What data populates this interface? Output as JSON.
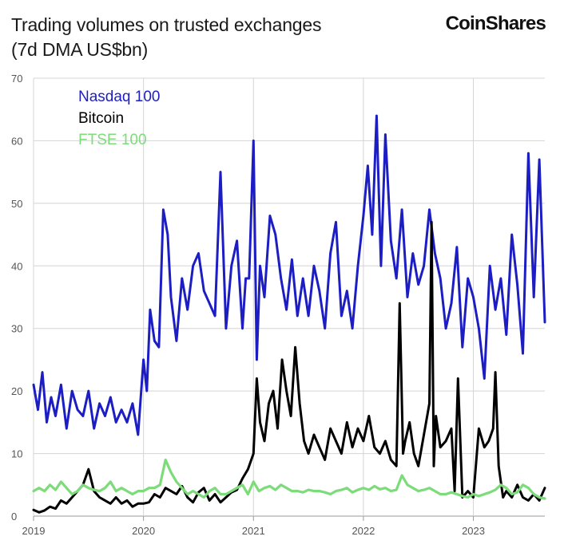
{
  "header": {
    "title_line1": "Trading volumes on trusted exchanges",
    "title_line2": "(7d DMA US$bn)",
    "brand": "CoinShares"
  },
  "colors": {
    "nasdaq": "#1c1ec4",
    "bitcoin": "#000000",
    "ftse": "#7ddc7a",
    "grid": "#d4d4d4",
    "axis_text": "#555555"
  },
  "chart_data": {
    "type": "line",
    "title": "Trading volumes on trusted exchanges (7d DMA US$bn)",
    "ylim": [
      0,
      70
    ],
    "yticks": [
      0,
      10,
      20,
      30,
      40,
      50,
      60,
      70
    ],
    "xlim": [
      2019.0,
      2023.65
    ],
    "xticks": [
      "2019",
      "2020",
      "2021",
      "2022",
      "2023"
    ],
    "grid": true,
    "legend_placement": "top-left",
    "series": [
      {
        "name": "Nasdaq 100",
        "x": [
          2019.0,
          2019.04,
          2019.08,
          2019.12,
          2019.16,
          2019.2,
          2019.25,
          2019.3,
          2019.35,
          2019.4,
          2019.45,
          2019.5,
          2019.55,
          2019.6,
          2019.65,
          2019.7,
          2019.75,
          2019.8,
          2019.85,
          2019.9,
          2019.95,
          2020.0,
          2020.03,
          2020.06,
          2020.1,
          2020.14,
          2020.18,
          2020.22,
          2020.25,
          2020.3,
          2020.35,
          2020.4,
          2020.45,
          2020.5,
          2020.55,
          2020.6,
          2020.65,
          2020.7,
          2020.75,
          2020.8,
          2020.85,
          2020.9,
          2020.93,
          2020.96,
          2021.0,
          2021.03,
          2021.06,
          2021.1,
          2021.15,
          2021.2,
          2021.25,
          2021.3,
          2021.35,
          2021.4,
          2021.45,
          2021.5,
          2021.55,
          2021.6,
          2021.65,
          2021.7,
          2021.75,
          2021.8,
          2021.85,
          2021.9,
          2021.95,
          2022.0,
          2022.04,
          2022.08,
          2022.12,
          2022.16,
          2022.2,
          2022.25,
          2022.3,
          2022.35,
          2022.4,
          2022.45,
          2022.5,
          2022.55,
          2022.6,
          2022.65,
          2022.7,
          2022.75,
          2022.8,
          2022.85,
          2022.9,
          2022.95,
          2023.0,
          2023.05,
          2023.1,
          2023.15,
          2023.2,
          2023.25,
          2023.3,
          2023.35,
          2023.4,
          2023.45,
          2023.5,
          2023.55,
          2023.6,
          2023.65
        ],
        "values": [
          21,
          17,
          23,
          15,
          19,
          16,
          21,
          14,
          20,
          17,
          16,
          20,
          14,
          18,
          16,
          19,
          15,
          17,
          15,
          18,
          13,
          25,
          20,
          33,
          28,
          27,
          49,
          45,
          35,
          28,
          38,
          33,
          40,
          42,
          36,
          34,
          32,
          55,
          30,
          40,
          44,
          30,
          38,
          38,
          60,
          25,
          40,
          35,
          48,
          45,
          38,
          33,
          41,
          32,
          38,
          32,
          40,
          36,
          30,
          42,
          47,
          32,
          36,
          30,
          40,
          48,
          56,
          45,
          64,
          40,
          61,
          44,
          38,
          49,
          35,
          42,
          37,
          40,
          49,
          42,
          38,
          30,
          34,
          43,
          27,
          38,
          35,
          30,
          22,
          40,
          33,
          38,
          29,
          45,
          37,
          26,
          58,
          35,
          57,
          31
        ]
      },
      {
        "name": "Bitcoin",
        "x": [
          2019.0,
          2019.05,
          2019.1,
          2019.15,
          2019.2,
          2019.25,
          2019.3,
          2019.35,
          2019.4,
          2019.45,
          2019.5,
          2019.55,
          2019.6,
          2019.65,
          2019.7,
          2019.75,
          2019.8,
          2019.85,
          2019.9,
          2019.95,
          2020.0,
          2020.05,
          2020.1,
          2020.15,
          2020.2,
          2020.25,
          2020.3,
          2020.35,
          2020.4,
          2020.45,
          2020.5,
          2020.55,
          2020.6,
          2020.65,
          2020.7,
          2020.75,
          2020.8,
          2020.85,
          2020.9,
          2020.95,
          2021.0,
          2021.03,
          2021.06,
          2021.1,
          2021.14,
          2021.18,
          2021.22,
          2021.26,
          2021.3,
          2021.34,
          2021.38,
          2021.42,
          2021.46,
          2021.5,
          2021.55,
          2021.6,
          2021.65,
          2021.7,
          2021.75,
          2021.8,
          2021.85,
          2021.9,
          2021.95,
          2022.0,
          2022.05,
          2022.1,
          2022.15,
          2022.2,
          2022.25,
          2022.3,
          2022.33,
          2022.36,
          2022.38,
          2022.42,
          2022.46,
          2022.5,
          2022.55,
          2022.6,
          2022.62,
          2022.64,
          2022.66,
          2022.7,
          2022.75,
          2022.8,
          2022.83,
          2022.86,
          2022.9,
          2022.95,
          2023.0,
          2023.05,
          2023.1,
          2023.14,
          2023.18,
          2023.2,
          2023.23,
          2023.27,
          2023.3,
          2023.35,
          2023.4,
          2023.45,
          2023.5,
          2023.55,
          2023.6,
          2023.65
        ],
        "values": [
          1,
          0.6,
          0.9,
          1.5,
          1.2,
          2.5,
          2,
          3,
          4,
          5,
          7.5,
          4,
          3,
          2.5,
          2,
          3,
          2,
          2.5,
          1.5,
          2,
          2,
          2.2,
          3.5,
          3,
          4.5,
          4,
          3.5,
          4.8,
          3,
          2.2,
          3.8,
          4.5,
          2.5,
          3.5,
          2.2,
          3,
          3.8,
          4.2,
          6,
          7.5,
          10,
          22,
          15,
          12,
          18,
          20,
          14,
          25,
          20,
          16,
          27,
          18,
          12,
          10,
          13,
          11,
          9,
          14,
          12,
          10,
          15,
          11,
          14,
          12,
          16,
          11,
          10,
          12,
          9,
          8,
          34,
          10,
          12,
          15,
          10,
          8,
          13,
          18,
          47,
          8,
          16,
          11,
          12,
          14,
          4,
          22,
          3,
          4,
          3,
          14,
          11,
          12,
          14,
          23,
          8,
          3,
          4,
          3,
          5,
          3,
          2.5,
          3.5,
          2.5,
          4.5
        ]
      },
      {
        "name": "FTSE 100",
        "x": [
          2019.0,
          2019.05,
          2019.1,
          2019.15,
          2019.2,
          2019.25,
          2019.3,
          2019.35,
          2019.4,
          2019.45,
          2019.5,
          2019.55,
          2019.6,
          2019.65,
          2019.7,
          2019.75,
          2019.8,
          2019.85,
          2019.9,
          2019.95,
          2020.0,
          2020.05,
          2020.1,
          2020.15,
          2020.2,
          2020.25,
          2020.3,
          2020.35,
          2020.4,
          2020.45,
          2020.5,
          2020.55,
          2020.6,
          2020.65,
          2020.7,
          2020.75,
          2020.8,
          2020.85,
          2020.9,
          2020.95,
          2021.0,
          2021.05,
          2021.1,
          2021.15,
          2021.2,
          2021.25,
          2021.3,
          2021.35,
          2021.4,
          2021.45,
          2021.5,
          2021.55,
          2021.6,
          2021.65,
          2021.7,
          2021.75,
          2021.8,
          2021.85,
          2021.9,
          2021.95,
          2022.0,
          2022.05,
          2022.1,
          2022.15,
          2022.2,
          2022.25,
          2022.3,
          2022.35,
          2022.4,
          2022.45,
          2022.5,
          2022.55,
          2022.6,
          2022.65,
          2022.7,
          2022.75,
          2022.8,
          2022.85,
          2022.9,
          2022.95,
          2023.0,
          2023.05,
          2023.1,
          2023.15,
          2023.2,
          2023.25,
          2023.3,
          2023.35,
          2023.4,
          2023.45,
          2023.5,
          2023.55,
          2023.6,
          2023.65
        ],
        "values": [
          4,
          4.5,
          4,
          5,
          4.2,
          5.5,
          4.5,
          3.5,
          4,
          5,
          4.5,
          4.2,
          4,
          4.5,
          5.5,
          4,
          4.5,
          4,
          3.5,
          4,
          4,
          4.5,
          4.5,
          5,
          9,
          7,
          5.5,
          4.5,
          3.5,
          4,
          3.5,
          3,
          4,
          4.5,
          3.5,
          3.5,
          4,
          4.5,
          5,
          3.5,
          5.5,
          4,
          4.5,
          4.8,
          4.2,
          5,
          4.5,
          4,
          4,
          3.8,
          4.2,
          4,
          4,
          3.8,
          3.5,
          4,
          4.2,
          4.5,
          3.8,
          4.2,
          4.5,
          4.2,
          4.8,
          4.3,
          4.5,
          4,
          4.2,
          6.5,
          5,
          4.5,
          4,
          4.2,
          4.5,
          4,
          3.5,
          3.5,
          3.8,
          3.5,
          3.2,
          3,
          3.5,
          3.2,
          3.5,
          3.8,
          4.2,
          5,
          4.5,
          3.5,
          3.8,
          5,
          4.5,
          3.5,
          3,
          2.8
        ]
      }
    ]
  }
}
